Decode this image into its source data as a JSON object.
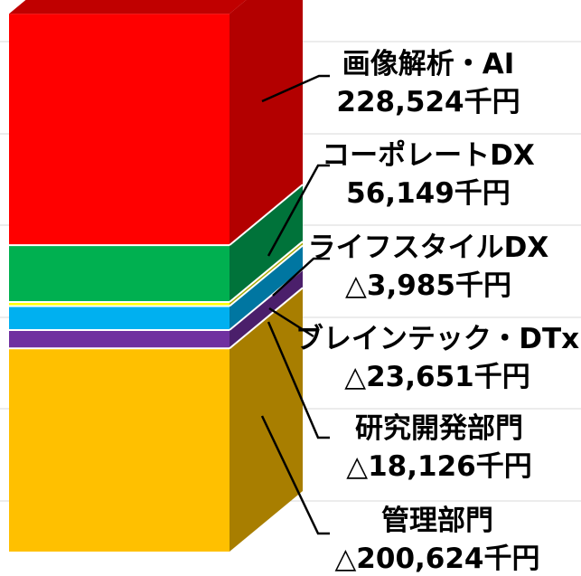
{
  "chart_data": {
    "type": "bar",
    "stacked": true,
    "style": "3d-column",
    "unit": "千円",
    "grid": true,
    "series": [
      {
        "name": "管理部門",
        "value": -200624,
        "label": "△200,624千円",
        "color": "#ffc000",
        "side_color": "#a87e00"
      },
      {
        "name": "研究開発部門",
        "value": -18126,
        "label": "△18,126千円",
        "color": "#7030a0",
        "side_color": "#4b1f6b"
      },
      {
        "name": "ブレインテック・DTx",
        "value": -23651,
        "label": "△23,651千円",
        "color": "#00b0f0",
        "side_color": "#0076a1"
      },
      {
        "name": "ライフスタイルDX",
        "value": -3985,
        "label": "△3,985千円",
        "color": "#ffff00",
        "side_color": "#a8a800"
      },
      {
        "name": "コーポレートDX",
        "value": 56149,
        "label": "56,149千円",
        "color": "#00b050",
        "side_color": "#00733a"
      },
      {
        "name": "画像解析・AI",
        "value": 228524,
        "label": "228,524千円",
        "color": "#ff0000",
        "side_color": "#b30000"
      }
    ]
  }
}
